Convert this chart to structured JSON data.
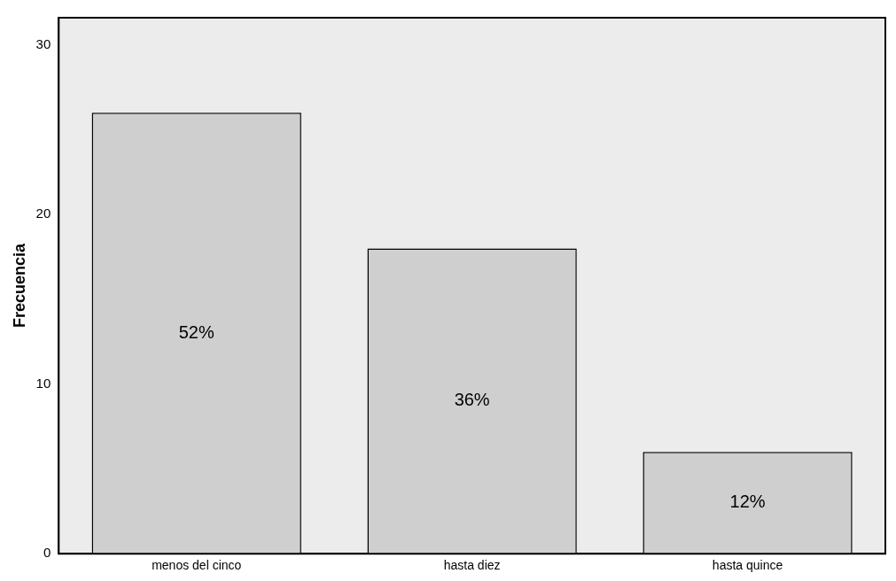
{
  "chart_data": {
    "type": "bar",
    "ylabel": "Frecuencia",
    "categories": [
      "menos del cinco",
      "hasta diez",
      "hasta quince"
    ],
    "values": [
      26,
      18,
      6
    ],
    "annotations": [
      "52%",
      "36%",
      "12%"
    ],
    "color": "#cfcfcf",
    "ylim": [
      0,
      31.6
    ],
    "yticks": [
      0,
      10,
      20,
      30
    ],
    "grid": false,
    "legend": false
  }
}
